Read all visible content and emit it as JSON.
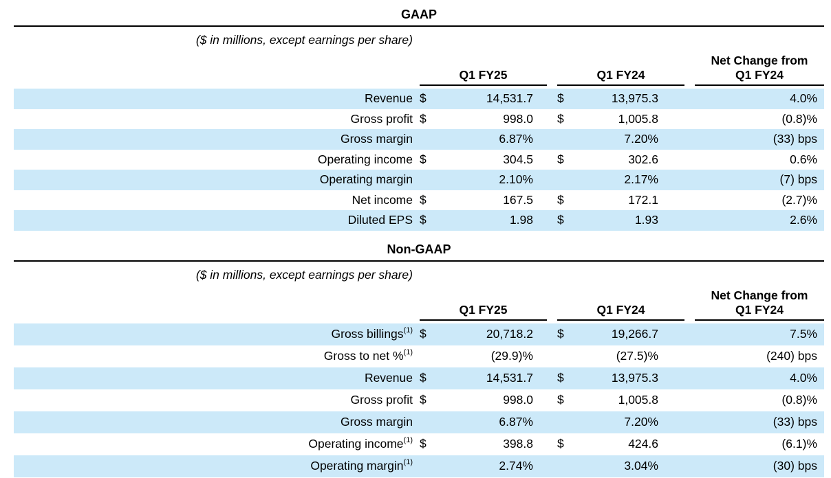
{
  "colors": {
    "stripe": "#cce9f9",
    "rule": "#000000"
  },
  "sections": [
    {
      "title": "GAAP",
      "note": "($ in millions, except earnings per share)",
      "columns": {
        "q1fy25": "Q1 FY25",
        "q1fy24": "Q1 FY24",
        "change_l1": "Net Change from",
        "change_l2": "Q1 FY24"
      },
      "rows": [
        {
          "label": "Revenue",
          "sup": "",
          "d1": "$",
          "v1": "14,531.7",
          "d2": "$",
          "v2": "13,975.3",
          "chg": "4.0%"
        },
        {
          "label": "Gross profit",
          "sup": "",
          "d1": "$",
          "v1": "998.0",
          "d2": "$",
          "v2": "1,005.8",
          "chg": "(0.8)%"
        },
        {
          "label": "Gross margin",
          "sup": "",
          "d1": "",
          "v1": "6.87%",
          "d2": "",
          "v2": "7.20%",
          "chg": "(33) bps"
        },
        {
          "label": "Operating income",
          "sup": "",
          "d1": "$",
          "v1": "304.5",
          "d2": "$",
          "v2": "302.6",
          "chg": "0.6%"
        },
        {
          "label": "Operating margin",
          "sup": "",
          "d1": "",
          "v1": "2.10%",
          "d2": "",
          "v2": "2.17%",
          "chg": "(7) bps"
        },
        {
          "label": "Net income",
          "sup": "",
          "d1": "$",
          "v1": "167.5",
          "d2": "$",
          "v2": "172.1",
          "chg": "(2.7)%"
        },
        {
          "label": "Diluted EPS",
          "sup": "",
          "d1": "$",
          "v1": "1.98",
          "d2": "$",
          "v2": "1.93",
          "chg": "2.6%"
        }
      ]
    },
    {
      "title": "Non-GAAP",
      "note": "($ in millions, except earnings per share)",
      "columns": {
        "q1fy25": "Q1 FY25",
        "q1fy24": "Q1 FY24",
        "change_l1": "Net Change from",
        "change_l2": "Q1 FY24"
      },
      "rows": [
        {
          "label": "Gross billings",
          "sup": "(1)",
          "d1": "$",
          "v1": "20,718.2",
          "d2": "$",
          "v2": "19,266.7",
          "chg": "7.5%"
        },
        {
          "label": "Gross to net %",
          "sup": "(1)",
          "d1": "",
          "v1": "(29.9)%",
          "d2": "",
          "v2": "(27.5)%",
          "chg": "(240) bps"
        },
        {
          "label": "Revenue",
          "sup": "",
          "d1": "$",
          "v1": "14,531.7",
          "d2": "$",
          "v2": "13,975.3",
          "chg": "4.0%"
        },
        {
          "label": "Gross profit",
          "sup": "",
          "d1": "$",
          "v1": "998.0",
          "d2": "$",
          "v2": "1,005.8",
          "chg": "(0.8)%"
        },
        {
          "label": "Gross margin",
          "sup": "",
          "d1": "",
          "v1": "6.87%",
          "d2": "",
          "v2": "7.20%",
          "chg": "(33) bps"
        },
        {
          "label": "Operating income",
          "sup": "(1)",
          "d1": "$",
          "v1": "398.8",
          "d2": "$",
          "v2": "424.6",
          "chg": "(6.1)%"
        },
        {
          "label": "Operating margin",
          "sup": "(1)",
          "d1": "",
          "v1": "2.74%",
          "d2": "",
          "v2": "3.04%",
          "chg": "(30) bps"
        }
      ]
    }
  ]
}
